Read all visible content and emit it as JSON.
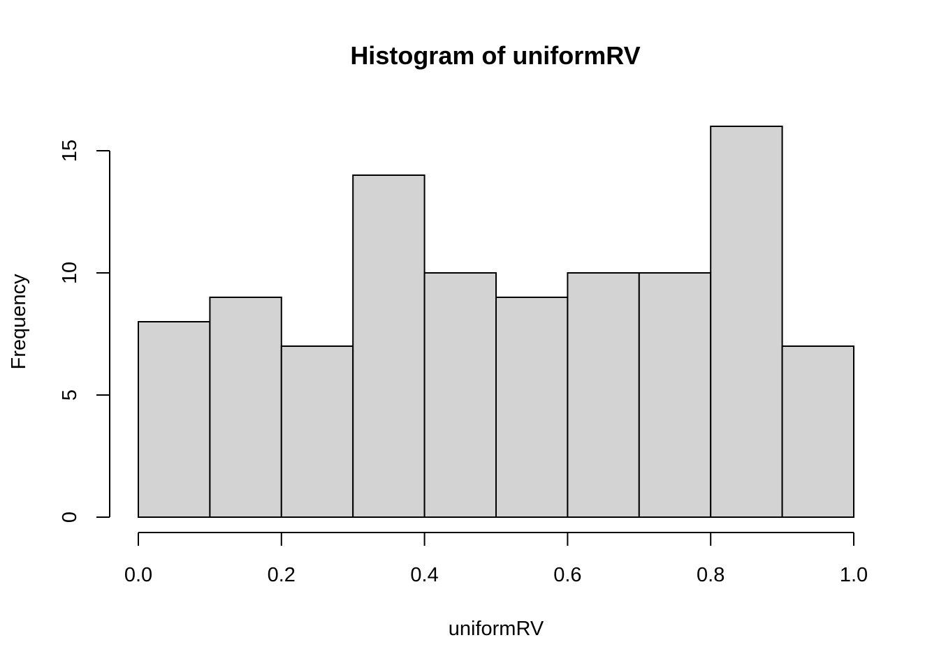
{
  "chart_data": {
    "type": "bar",
    "title": "Histogram of uniformRV",
    "xlabel": "uniformRV",
    "ylabel": "Frequency",
    "bins": [
      {
        "start": 0.0,
        "end": 0.1,
        "count": 8
      },
      {
        "start": 0.1,
        "end": 0.2,
        "count": 9
      },
      {
        "start": 0.2,
        "end": 0.3,
        "count": 7
      },
      {
        "start": 0.3,
        "end": 0.4,
        "count": 14
      },
      {
        "start": 0.4,
        "end": 0.5,
        "count": 10
      },
      {
        "start": 0.5,
        "end": 0.6,
        "count": 9
      },
      {
        "start": 0.6,
        "end": 0.7,
        "count": 10
      },
      {
        "start": 0.7,
        "end": 0.8,
        "count": 10
      },
      {
        "start": 0.8,
        "end": 0.9,
        "count": 16
      },
      {
        "start": 0.9,
        "end": 1.0,
        "count": 7
      }
    ],
    "xlim": [
      0.0,
      1.0
    ],
    "ylim": [
      0,
      16
    ],
    "x_ticks": [
      {
        "value": 0.0,
        "label": "0.0"
      },
      {
        "value": 0.2,
        "label": "0.2"
      },
      {
        "value": 0.4,
        "label": "0.4"
      },
      {
        "value": 0.6,
        "label": "0.6"
      },
      {
        "value": 0.8,
        "label": "0.8"
      },
      {
        "value": 1.0,
        "label": "1.0"
      }
    ],
    "y_ticks": [
      {
        "value": 0,
        "label": "0"
      },
      {
        "value": 5,
        "label": "5"
      },
      {
        "value": 10,
        "label": "10"
      },
      {
        "value": 15,
        "label": "15"
      }
    ],
    "grid": false,
    "bar_color": "#d3d3d3",
    "edge_color": "#000000"
  }
}
